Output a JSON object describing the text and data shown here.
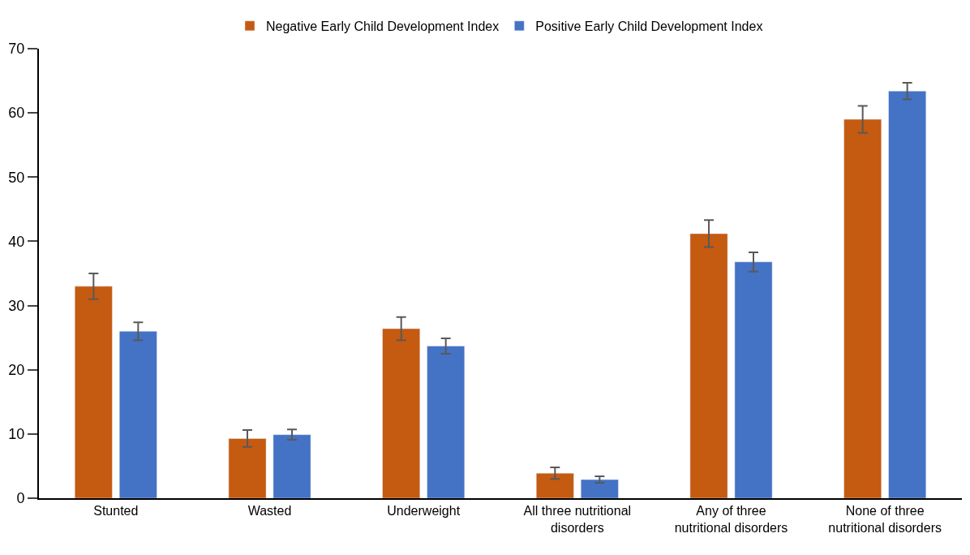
{
  "chart_data": {
    "type": "bar",
    "categories": [
      "Stunted",
      "Wasted",
      "Underweight",
      "All three nutritional disorders",
      "Any of three nutritional disorders",
      "None of three nutritional disorders"
    ],
    "series": [
      {
        "name": "Negative Early Child Development Index",
        "color": "#c55a11",
        "values": [
          33.0,
          9.3,
          26.4,
          3.9,
          41.2,
          59.0
        ],
        "errors": [
          2.0,
          1.3,
          1.8,
          0.9,
          2.1,
          2.1
        ]
      },
      {
        "name": "Positive Early Child Development Index",
        "color": "#4472c4",
        "values": [
          26.0,
          9.9,
          23.7,
          2.9,
          36.8,
          63.4
        ],
        "errors": [
          1.4,
          0.8,
          1.2,
          0.5,
          1.5,
          1.3
        ]
      }
    ],
    "ylim": [
      0,
      70
    ],
    "yticks": [
      0,
      10,
      20,
      30,
      40,
      50,
      60,
      70
    ],
    "legend": "top"
  }
}
